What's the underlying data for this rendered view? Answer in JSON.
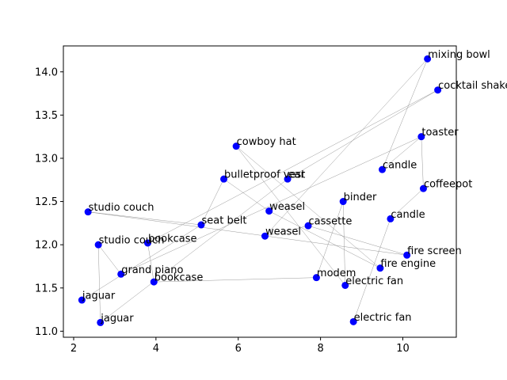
{
  "chart_data": {
    "type": "scatter",
    "title": "",
    "xlabel": "",
    "ylabel": "",
    "xlim": [
      1.75,
      11.3
    ],
    "ylim": [
      10.93,
      14.3
    ],
    "xticks": [
      2,
      4,
      6,
      8,
      10
    ],
    "yticks": [
      11.0,
      11.5,
      12.0,
      12.5,
      13.0,
      13.5,
      14.0
    ],
    "xtick_labels": [
      "2",
      "4",
      "6",
      "8",
      "10"
    ],
    "ytick_labels": [
      "11.0",
      "11.5",
      "12.0",
      "12.5",
      "13.0",
      "13.5",
      "14.0"
    ],
    "grid": false,
    "point_color": "#0000ff",
    "line_color": "#808080",
    "points": [
      {
        "label": "mixing bowl",
        "x": 10.6,
        "y": 14.15
      },
      {
        "label": "cocktail shaker",
        "x": 10.85,
        "y": 13.79
      },
      {
        "label": "cowboy hat",
        "x": 5.95,
        "y": 13.14
      },
      {
        "label": "toaster",
        "x": 10.45,
        "y": 13.25
      },
      {
        "label": "candle",
        "x": 9.5,
        "y": 12.87
      },
      {
        "label": "bulletproof vest",
        "x": 5.65,
        "y": 12.76
      },
      {
        "label": "ear",
        "x": 7.2,
        "y": 12.76
      },
      {
        "label": "coffeepot",
        "x": 10.5,
        "y": 12.65
      },
      {
        "label": "binder",
        "x": 8.55,
        "y": 12.5
      },
      {
        "label": "studio couch",
        "x": 2.35,
        "y": 12.38
      },
      {
        "label": "weasel",
        "x": 6.75,
        "y": 12.39
      },
      {
        "label": "candle",
        "x": 9.7,
        "y": 12.3
      },
      {
        "label": "seat belt",
        "x": 5.1,
        "y": 12.23
      },
      {
        "label": "cassette",
        "x": 7.7,
        "y": 12.22
      },
      {
        "label": "weasel",
        "x": 6.65,
        "y": 12.1
      },
      {
        "label": "studio couch",
        "x": 2.6,
        "y": 12.0
      },
      {
        "label": "bookcase",
        "x": 3.8,
        "y": 12.02
      },
      {
        "label": "fire screen",
        "x": 10.1,
        "y": 11.88
      },
      {
        "label": "fire engine",
        "x": 9.45,
        "y": 11.73
      },
      {
        "label": "grand piano",
        "x": 3.15,
        "y": 11.66
      },
      {
        "label": "bookcase",
        "x": 3.95,
        "y": 11.57
      },
      {
        "label": "modem",
        "x": 7.9,
        "y": 11.62
      },
      {
        "label": "electric fan",
        "x": 8.6,
        "y": 11.53
      },
      {
        "label": "jaguar",
        "x": 2.2,
        "y": 11.36
      },
      {
        "label": "jaguar",
        "x": 2.65,
        "y": 11.1
      },
      {
        "label": "electric fan",
        "x": 8.8,
        "y": 11.11
      }
    ],
    "connections": [
      [
        23,
        12
      ],
      [
        12,
        9
      ],
      [
        9,
        17
      ],
      [
        17,
        13
      ],
      [
        13,
        14
      ],
      [
        14,
        0
      ],
      [
        0,
        4
      ],
      [
        4,
        3
      ],
      [
        3,
        19
      ],
      [
        19,
        15
      ],
      [
        15,
        24
      ],
      [
        24,
        6
      ],
      [
        6,
        1
      ],
      [
        1,
        16
      ],
      [
        16,
        20
      ],
      [
        20,
        21
      ],
      [
        21,
        8
      ],
      [
        8,
        22
      ],
      [
        22,
        2
      ],
      [
        2,
        18
      ],
      [
        18,
        10
      ],
      [
        10,
        5
      ],
      [
        5,
        12
      ],
      [
        11,
        25
      ],
      [
        11,
        7
      ],
      [
        7,
        3
      ]
    ]
  }
}
